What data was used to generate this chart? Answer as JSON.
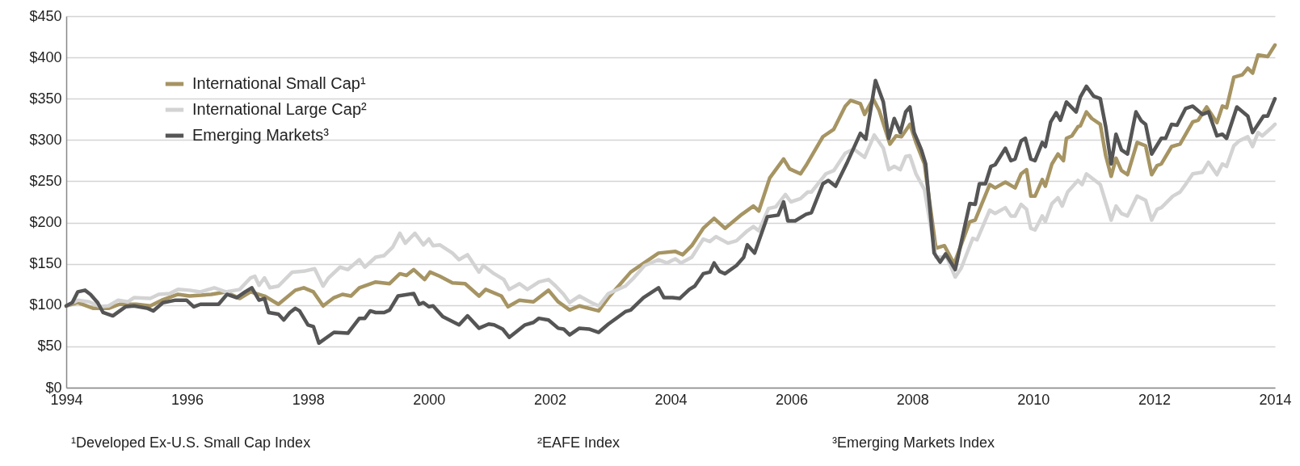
{
  "chart_data": {
    "type": "line",
    "xlim": [
      1994,
      2014
    ],
    "xticks": [
      1994,
      1996,
      1998,
      2000,
      2002,
      2004,
      2006,
      2008,
      2010,
      2012,
      2014
    ],
    "ylim": [
      0,
      450
    ],
    "yticks": [
      {
        "value": 0,
        "label": "$0"
      },
      {
        "value": 50,
        "label": "$50"
      },
      {
        "value": 100,
        "label": "$100"
      },
      {
        "value": 150,
        "label": "$150"
      },
      {
        "value": 200,
        "label": "$200"
      },
      {
        "value": 250,
        "label": "$250"
      },
      {
        "value": 300,
        "label": "$300"
      },
      {
        "value": 350,
        "label": "$350"
      },
      {
        "value": 400,
        "label": "$400"
      },
      {
        "value": 450,
        "label": "$450"
      }
    ],
    "grid": "y",
    "legend": "top left",
    "line_style": "solid",
    "marker": "none",
    "series": [
      {
        "name": "International Small Cap¹",
        "color": "#a69463",
        "x": [
          1994.0,
          1994.19,
          1994.45,
          1994.7,
          1994.88,
          1995.16,
          1995.39,
          1995.58,
          1995.85,
          1996.04,
          1996.4,
          1996.64,
          1996.87,
          1997.05,
          1997.28,
          1997.51,
          1997.79,
          1997.93,
          1998.09,
          1998.25,
          1998.43,
          1998.57,
          1998.71,
          1998.85,
          1999.12,
          1999.35,
          1999.52,
          1999.63,
          1999.75,
          1999.93,
          2000.02,
          2000.18,
          2000.39,
          2000.6,
          2000.83,
          2000.94,
          2001.2,
          2001.31,
          2001.5,
          2001.73,
          2001.98,
          2002.14,
          2002.33,
          2002.49,
          2002.81,
          2002.97,
          2003.34,
          2003.8,
          2004.08,
          2004.2,
          2004.35,
          2004.54,
          2004.72,
          2004.9,
          2005.18,
          2005.37,
          2005.46,
          2005.64,
          2005.87,
          2005.97,
          2006.15,
          2006.24,
          2006.52,
          2006.7,
          2006.89,
          2006.98,
          2007.14,
          2007.21,
          2007.35,
          2007.45,
          2007.63,
          2007.73,
          2007.82,
          2007.96,
          2008.06,
          2008.2,
          2008.39,
          2008.53,
          2008.69,
          2008.95,
          2009.04,
          2009.28,
          2009.37,
          2009.54,
          2009.7,
          2009.8,
          2009.89,
          2009.96,
          2010.03,
          2010.15,
          2010.2,
          2010.31,
          2010.41,
          2010.5,
          2010.55,
          2010.64,
          2010.74,
          2010.78,
          2010.88,
          2010.97,
          2011.11,
          2011.2,
          2011.29,
          2011.37,
          2011.46,
          2011.56,
          2011.72,
          2011.86,
          2011.96,
          2012.05,
          2012.12,
          2012.29,
          2012.43,
          2012.64,
          2012.73,
          2012.87,
          2013.04,
          2013.13,
          2013.2,
          2013.32,
          2013.46,
          2013.55,
          2013.63,
          2013.72,
          2013.88,
          2014.0
        ],
        "values": [
          99,
          103,
          96,
          96,
          101,
          101,
          99,
          106,
          113,
          111,
          113,
          116,
          108,
          116,
          111,
          101,
          118,
          121,
          116,
          99,
          109,
          113,
          111,
          121,
          128,
          126,
          138,
          136,
          143,
          131,
          140,
          135,
          127,
          126,
          111,
          119,
          111,
          98,
          106,
          104,
          118,
          104,
          94,
          99,
          93,
          109,
          140,
          163,
          165,
          161,
          172,
          193,
          205,
          193,
          210,
          220,
          214,
          254,
          277,
          265,
          259,
          269,
          304,
          313,
          341,
          348,
          344,
          331,
          350,
          336,
          295,
          305,
          304,
          319,
          297,
          271,
          169,
          172,
          150,
          201,
          203,
          246,
          242,
          249,
          242,
          259,
          264,
          232,
          232,
          252,
          244,
          271,
          283,
          275,
          302,
          305,
          316,
          317,
          334,
          326,
          319,
          281,
          256,
          278,
          263,
          258,
          297,
          293,
          258,
          269,
          271,
          292,
          295,
          322,
          324,
          340,
          321,
          341,
          339,
          376,
          379,
          387,
          381,
          403,
          401,
          415
        ]
      },
      {
        "name": "International Large Cap²",
        "color": "#d3d3d3",
        "x": [
          1994.0,
          1994.19,
          1994.38,
          1994.56,
          1994.7,
          1994.86,
          1995.02,
          1995.12,
          1995.39,
          1995.53,
          1995.71,
          1995.85,
          1996.04,
          1996.22,
          1996.45,
          1996.64,
          1996.87,
          1997.05,
          1997.12,
          1997.19,
          1997.28,
          1997.37,
          1997.51,
          1997.74,
          1997.93,
          1998.11,
          1998.25,
          1998.34,
          1998.53,
          1998.66,
          1998.85,
          1998.94,
          1999.12,
          1999.26,
          1999.4,
          1999.52,
          1999.61,
          1999.77,
          1999.91,
          2000.0,
          2000.07,
          2000.18,
          2000.39,
          2000.5,
          2000.64,
          2000.83,
          2000.9,
          2001.08,
          2001.24,
          2001.33,
          2001.5,
          2001.63,
          2001.82,
          2001.98,
          2002.1,
          2002.23,
          2002.33,
          2002.49,
          2002.69,
          2002.81,
          2002.97,
          2003.25,
          2003.39,
          2003.57,
          2003.8,
          2003.94,
          2004.08,
          2004.17,
          2004.35,
          2004.54,
          2004.65,
          2004.75,
          2004.95,
          2005.09,
          2005.27,
          2005.37,
          2005.46,
          2005.62,
          2005.74,
          2005.9,
          2005.99,
          2006.15,
          2006.27,
          2006.33,
          2006.57,
          2006.7,
          2006.89,
          2007.03,
          2007.21,
          2007.37,
          2007.52,
          2007.61,
          2007.7,
          2007.8,
          2007.89,
          2007.96,
          2008.06,
          2008.2,
          2008.39,
          2008.57,
          2008.71,
          2008.81,
          2009.0,
          2009.07,
          2009.28,
          2009.37,
          2009.54,
          2009.63,
          2009.7,
          2009.8,
          2009.89,
          2009.96,
          2010.03,
          2010.15,
          2010.2,
          2010.31,
          2010.41,
          2010.48,
          2010.57,
          2010.74,
          2010.81,
          2010.88,
          2011.11,
          2011.29,
          2011.37,
          2011.46,
          2011.56,
          2011.72,
          2011.86,
          2011.96,
          2012.05,
          2012.12,
          2012.31,
          2012.43,
          2012.52,
          2012.64,
          2012.8,
          2012.9,
          2013.04,
          2013.13,
          2013.2,
          2013.32,
          2013.41,
          2013.55,
          2013.63,
          2013.72,
          2013.79,
          2013.93,
          2014.0
        ],
        "values": [
          99,
          106,
          104,
          98,
          99,
          106,
          104,
          109,
          108,
          113,
          114,
          119,
          118,
          116,
          121,
          116,
          119,
          133,
          135,
          124,
          133,
          121,
          123,
          140,
          141,
          144,
          123,
          133,
          146,
          143,
          155,
          146,
          158,
          160,
          170,
          187,
          175,
          187,
          173,
          180,
          172,
          173,
          163,
          155,
          161,
          140,
          148,
          138,
          131,
          119,
          126,
          119,
          128,
          131,
          123,
          113,
          103,
          111,
          103,
          99,
          114,
          123,
          133,
          148,
          155,
          151,
          156,
          151,
          158,
          180,
          177,
          183,
          175,
          178,
          190,
          195,
          190,
          217,
          219,
          234,
          225,
          229,
          237,
          237,
          259,
          263,
          284,
          289,
          279,
          306,
          290,
          264,
          268,
          264,
          280,
          281,
          259,
          240,
          158,
          158,
          134,
          145,
          181,
          179,
          215,
          211,
          218,
          208,
          208,
          222,
          216,
          193,
          191,
          208,
          201,
          223,
          230,
          220,
          237,
          251,
          246,
          259,
          246,
          203,
          220,
          211,
          208,
          232,
          227,
          203,
          216,
          218,
          232,
          237,
          246,
          259,
          261,
          273,
          258,
          271,
          268,
          293,
          299,
          304,
          292,
          309,
          305,
          314,
          319
        ]
      },
      {
        "name": "Emerging Markets³",
        "color": "#555555",
        "x": [
          1994.0,
          1994.1,
          1994.19,
          1994.31,
          1994.4,
          1994.52,
          1994.61,
          1994.77,
          1994.98,
          1995.12,
          1995.35,
          1995.44,
          1995.6,
          1995.81,
          1995.99,
          1996.11,
          1996.22,
          1996.41,
          1996.52,
          1996.66,
          1996.82,
          1996.96,
          1997.07,
          1997.19,
          1997.28,
          1997.35,
          1997.51,
          1997.6,
          1997.7,
          1997.79,
          1997.86,
          1998.0,
          1998.09,
          1998.18,
          1998.43,
          1998.66,
          1998.85,
          1998.94,
          1999.03,
          1999.12,
          1999.26,
          1999.35,
          1999.49,
          1999.75,
          1999.84,
          1999.91,
          2000.0,
          2000.07,
          2000.23,
          2000.5,
          2000.64,
          2000.83,
          2000.99,
          2001.08,
          2001.22,
          2001.33,
          2001.59,
          2001.73,
          2001.82,
          2001.98,
          2002.14,
          2002.23,
          2002.33,
          2002.49,
          2002.65,
          2002.81,
          2002.97,
          2003.25,
          2003.34,
          2003.55,
          2003.8,
          2003.89,
          2004.03,
          2004.15,
          2004.31,
          2004.4,
          2004.54,
          2004.65,
          2004.72,
          2004.81,
          2004.9,
          2005.09,
          2005.21,
          2005.27,
          2005.39,
          2005.6,
          2005.78,
          2005.87,
          2005.94,
          2006.06,
          2006.24,
          2006.33,
          2006.52,
          2006.61,
          2006.73,
          2006.93,
          2007.14,
          2007.23,
          2007.39,
          2007.52,
          2007.61,
          2007.7,
          2007.8,
          2007.89,
          2007.96,
          2008.03,
          2008.15,
          2008.22,
          2008.36,
          2008.46,
          2008.55,
          2008.71,
          2008.95,
          2009.04,
          2009.11,
          2009.21,
          2009.3,
          2009.37,
          2009.54,
          2009.63,
          2009.7,
          2009.8,
          2009.87,
          2009.96,
          2010.03,
          2010.15,
          2010.2,
          2010.29,
          2010.38,
          2010.45,
          2010.55,
          2010.71,
          2010.78,
          2010.88,
          2011.0,
          2011.11,
          2011.2,
          2011.29,
          2011.37,
          2011.46,
          2011.56,
          2011.7,
          2011.79,
          2011.86,
          2011.96,
          2012.12,
          2012.19,
          2012.29,
          2012.38,
          2012.52,
          2012.64,
          2012.8,
          2012.9,
          2013.04,
          2013.13,
          2013.2,
          2013.37,
          2013.55,
          2013.63,
          2013.81,
          2013.88,
          2014.0
        ],
        "values": [
          99,
          103,
          116,
          118,
          113,
          103,
          91,
          87,
          98,
          99,
          96,
          93,
          103,
          106,
          106,
          98,
          101,
          101,
          101,
          113,
          109,
          116,
          121,
          106,
          108,
          91,
          89,
          82,
          91,
          96,
          93,
          76,
          74,
          54,
          67,
          66,
          84,
          84,
          93,
          91,
          91,
          94,
          111,
          114,
          101,
          103,
          98,
          99,
          86,
          76,
          87,
          72,
          77,
          76,
          71,
          61,
          76,
          79,
          84,
          82,
          72,
          71,
          64,
          72,
          71,
          67,
          77,
          92,
          94,
          109,
          121,
          109,
          109,
          108,
          119,
          123,
          138,
          140,
          151,
          141,
          138,
          148,
          158,
          173,
          163,
          207,
          209,
          225,
          202,
          202,
          210,
          212,
          247,
          251,
          244,
          274,
          308,
          301,
          372,
          346,
          302,
          326,
          309,
          334,
          340,
          309,
          288,
          271,
          163,
          152,
          162,
          143,
          223,
          222,
          247,
          247,
          268,
          270,
          290,
          275,
          277,
          299,
          302,
          277,
          275,
          297,
          292,
          322,
          333,
          324,
          346,
          334,
          352,
          365,
          353,
          350,
          316,
          271,
          307,
          288,
          283,
          334,
          323,
          319,
          283,
          302,
          302,
          319,
          318,
          338,
          341,
          331,
          334,
          305,
          307,
          302,
          340,
          329,
          309,
          329,
          329,
          350
        ]
      }
    ],
    "annotations": [
      "¹Developed Ex-U.S. Small Cap Index",
      "²EAFE Index",
      "³Emerging Markets Index"
    ]
  }
}
